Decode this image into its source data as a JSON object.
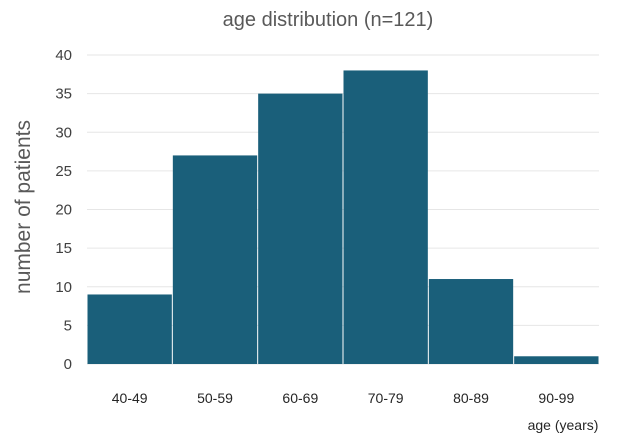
{
  "chart_data": {
    "type": "bar",
    "title": "age distribution (n=121)",
    "xlabel": "age (years)",
    "ylabel": "number of patients",
    "categories": [
      "40-49",
      "50-59",
      "60-69",
      "70-79",
      "80-89",
      "90-99"
    ],
    "values": [
      9,
      27,
      35,
      38,
      11,
      1
    ],
    "ylim": [
      0,
      40
    ],
    "yticks": [
      0,
      5,
      10,
      15,
      20,
      25,
      30,
      35,
      40
    ],
    "grid": true,
    "bar_color": "#1a5f7a",
    "grid_color": "#e6e6e6"
  }
}
